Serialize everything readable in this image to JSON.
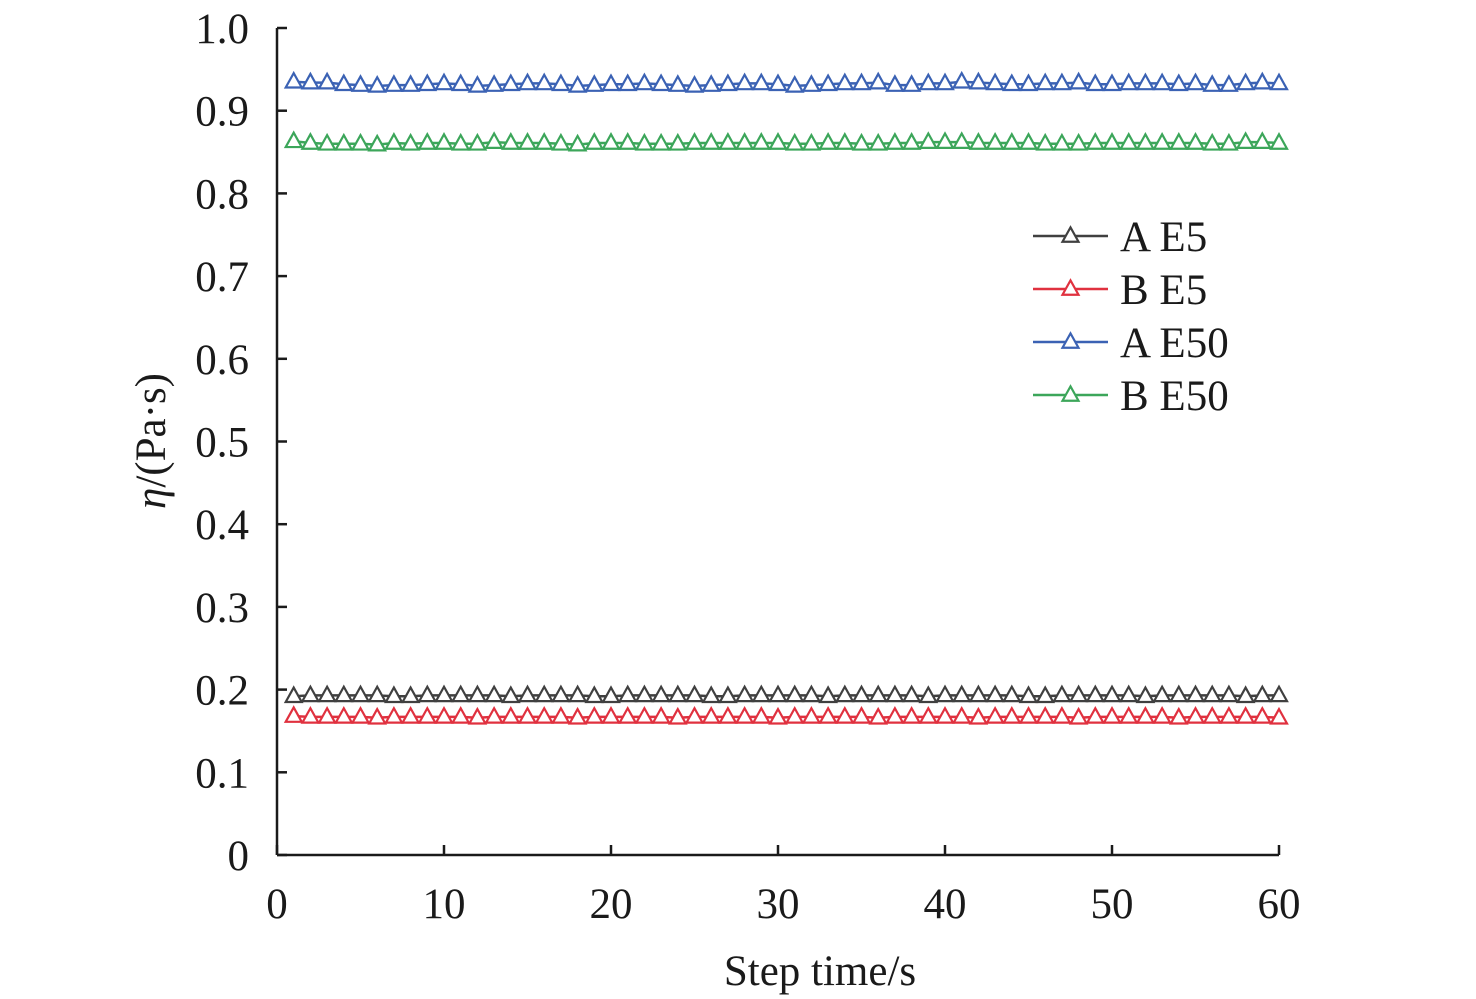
{
  "chart_data": {
    "type": "line",
    "xlabel": "Step time/s",
    "ylabel": {
      "symbol": "η",
      "unit": "/(Pa·s)"
    },
    "xlim": [
      0,
      60
    ],
    "ylim": [
      0,
      1.0
    ],
    "xticks": [
      "0",
      "10",
      "20",
      "30",
      "40",
      "50",
      "60"
    ],
    "yticks": [
      "0",
      "0.1",
      "0.2",
      "0.3",
      "0.4",
      "0.5",
      "0.6",
      "0.7",
      "0.8",
      "0.9",
      "1.0"
    ],
    "marker": "open-triangle",
    "legend_position": "right, upper-middle",
    "grid": false,
    "x": [
      1,
      2,
      3,
      4,
      5,
      6,
      7,
      8,
      9,
      10,
      11,
      12,
      13,
      14,
      15,
      16,
      17,
      18,
      19,
      20,
      21,
      22,
      23,
      24,
      25,
      26,
      27,
      28,
      29,
      30,
      31,
      32,
      33,
      34,
      35,
      36,
      37,
      38,
      39,
      40,
      41,
      42,
      43,
      44,
      45,
      46,
      47,
      48,
      49,
      50,
      51,
      52,
      53,
      54,
      55,
      56,
      57,
      58,
      59,
      60
    ],
    "series": [
      {
        "name": "A E5",
        "color": "#404040",
        "values": [
          0.192,
          0.193,
          0.193,
          0.193,
          0.193,
          0.193,
          0.192,
          0.192,
          0.193,
          0.193,
          0.193,
          0.193,
          0.193,
          0.192,
          0.193,
          0.193,
          0.193,
          0.193,
          0.192,
          0.192,
          0.193,
          0.193,
          0.193,
          0.193,
          0.193,
          0.192,
          0.192,
          0.193,
          0.193,
          0.193,
          0.193,
          0.193,
          0.192,
          0.193,
          0.193,
          0.193,
          0.193,
          0.193,
          0.192,
          0.193,
          0.193,
          0.193,
          0.193,
          0.193,
          0.192,
          0.192,
          0.193,
          0.193,
          0.193,
          0.193,
          0.193,
          0.192,
          0.193,
          0.193,
          0.193,
          0.193,
          0.193,
          0.192,
          0.193,
          0.193
        ]
      },
      {
        "name": "B E5",
        "color": "#e0313f",
        "values": [
          0.168,
          0.167,
          0.167,
          0.167,
          0.167,
          0.166,
          0.167,
          0.167,
          0.167,
          0.167,
          0.167,
          0.166,
          0.167,
          0.167,
          0.167,
          0.167,
          0.167,
          0.166,
          0.167,
          0.167,
          0.167,
          0.167,
          0.167,
          0.166,
          0.167,
          0.167,
          0.167,
          0.167,
          0.167,
          0.166,
          0.167,
          0.167,
          0.167,
          0.167,
          0.167,
          0.166,
          0.167,
          0.167,
          0.167,
          0.167,
          0.167,
          0.166,
          0.167,
          0.167,
          0.167,
          0.167,
          0.167,
          0.166,
          0.167,
          0.167,
          0.167,
          0.167,
          0.167,
          0.166,
          0.167,
          0.167,
          0.167,
          0.167,
          0.167,
          0.166
        ]
      },
      {
        "name": "A E50",
        "color": "#3b62b4",
        "values": [
          0.935,
          0.934,
          0.934,
          0.932,
          0.931,
          0.93,
          0.931,
          0.931,
          0.932,
          0.933,
          0.932,
          0.93,
          0.931,
          0.932,
          0.933,
          0.933,
          0.932,
          0.93,
          0.931,
          0.932,
          0.932,
          0.933,
          0.932,
          0.931,
          0.93,
          0.931,
          0.932,
          0.933,
          0.933,
          0.932,
          0.93,
          0.931,
          0.932,
          0.933,
          0.933,
          0.934,
          0.931,
          0.931,
          0.933,
          0.933,
          0.935,
          0.934,
          0.933,
          0.932,
          0.932,
          0.933,
          0.933,
          0.934,
          0.932,
          0.932,
          0.933,
          0.933,
          0.933,
          0.932,
          0.933,
          0.931,
          0.931,
          0.933,
          0.934,
          0.933
        ]
      },
      {
        "name": "B E50",
        "color": "#3ca65a",
        "values": [
          0.863,
          0.861,
          0.86,
          0.86,
          0.86,
          0.859,
          0.861,
          0.86,
          0.861,
          0.861,
          0.86,
          0.86,
          0.862,
          0.861,
          0.861,
          0.861,
          0.86,
          0.859,
          0.861,
          0.861,
          0.861,
          0.86,
          0.86,
          0.86,
          0.861,
          0.861,
          0.861,
          0.861,
          0.861,
          0.861,
          0.86,
          0.86,
          0.861,
          0.861,
          0.86,
          0.86,
          0.861,
          0.861,
          0.862,
          0.862,
          0.862,
          0.861,
          0.861,
          0.861,
          0.861,
          0.86,
          0.86,
          0.86,
          0.861,
          0.861,
          0.861,
          0.861,
          0.861,
          0.861,
          0.861,
          0.86,
          0.86,
          0.862,
          0.862,
          0.861
        ]
      }
    ]
  }
}
